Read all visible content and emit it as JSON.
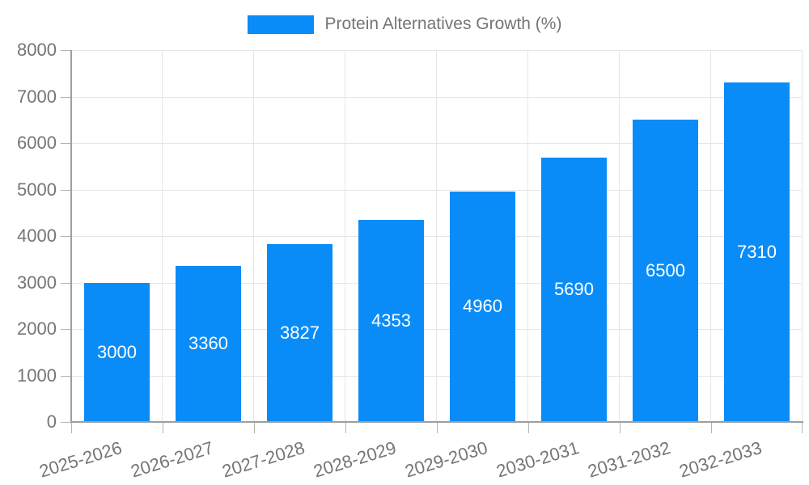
{
  "legend": {
    "label": "Protein Alternatives Growth (%)"
  },
  "chart_data": {
    "type": "bar",
    "title": "",
    "xlabel": "",
    "ylabel": "",
    "categories": [
      "2025-2026",
      "2026-2027",
      "2027-2028",
      "2028-2029",
      "2029-2030",
      "2030-2031",
      "2031-2032",
      "2032-2033"
    ],
    "series": [
      {
        "name": "Protein Alternatives Growth (%)",
        "values": [
          3000,
          3360,
          3827,
          4353,
          4960,
          5690,
          6500,
          7310
        ]
      }
    ],
    "bar_labels_shown": true,
    "ylim": [
      0,
      8000
    ],
    "yticks": [
      0,
      1000,
      2000,
      3000,
      4000,
      5000,
      6000,
      7000,
      8000
    ],
    "grid": true,
    "legend_position": "top-center",
    "x_label_rotation_deg": -17,
    "colors": {
      "bar": "#0a8cf8",
      "bar_label": "#ffffff",
      "axis_text": "#757575",
      "grid": "#e6e6e6",
      "axis_line": "#9e9e9e",
      "tick": "#b3b3b3",
      "background": "#ffffff"
    }
  }
}
